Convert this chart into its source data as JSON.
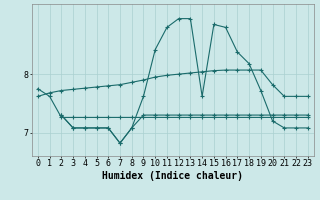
{
  "bg_color": "#cce8e8",
  "line_color": "#1a6b6b",
  "grid_color": "#aad0d0",
  "xlabel": "Humidex (Indice chaleur)",
  "xlabel_fontsize": 7,
  "tick_fontsize": 6,
  "ylabel_ticks": [
    7,
    8
  ],
  "xlim": [
    -0.5,
    23.5
  ],
  "ylim": [
    6.6,
    9.2
  ],
  "figsize": [
    3.2,
    2.0
  ],
  "dpi": 100,
  "series1_x": [
    0,
    1,
    2,
    3,
    4,
    5,
    6,
    7,
    8,
    9,
    10,
    11,
    12,
    13,
    14,
    15,
    16,
    17,
    18,
    19,
    20,
    21,
    22,
    23
  ],
  "series1_y": [
    7.75,
    7.62,
    7.26,
    7.26,
    7.26,
    7.26,
    7.26,
    7.26,
    7.26,
    7.26,
    7.26,
    7.26,
    7.26,
    7.26,
    7.26,
    7.26,
    7.26,
    7.26,
    7.26,
    7.26,
    7.26,
    7.26,
    7.26,
    7.26
  ],
  "series2_x": [
    0,
    1,
    2,
    3,
    4,
    5,
    6,
    7,
    8,
    9,
    10,
    11,
    12,
    13,
    14,
    15,
    16,
    17,
    18,
    19,
    20,
    21,
    22,
    23
  ],
  "series2_y": [
    7.62,
    7.68,
    7.72,
    7.74,
    7.76,
    7.78,
    7.8,
    7.82,
    7.86,
    7.9,
    7.95,
    7.98,
    8.0,
    8.02,
    8.04,
    8.06,
    8.07,
    8.07,
    8.07,
    8.07,
    7.82,
    7.62,
    7.62,
    7.62
  ],
  "series3_x": [
    2,
    3,
    4,
    5,
    6,
    7,
    8,
    9,
    10,
    11,
    12,
    13,
    14,
    15,
    16,
    17,
    18,
    19,
    20,
    21,
    22,
    23
  ],
  "series3_y": [
    7.3,
    7.08,
    7.08,
    7.08,
    7.08,
    6.82,
    7.08,
    7.3,
    7.3,
    7.3,
    7.3,
    7.3,
    7.3,
    7.3,
    7.3,
    7.3,
    7.3,
    7.3,
    7.3,
    7.3,
    7.3,
    7.3
  ],
  "series4_x": [
    2,
    3,
    4,
    5,
    6,
    7,
    8,
    9,
    10,
    11,
    12,
    13,
    14,
    15,
    16,
    17,
    18,
    19,
    20,
    21,
    22,
    23
  ],
  "series4_y": [
    7.3,
    7.08,
    7.08,
    7.08,
    7.08,
    6.82,
    7.08,
    7.62,
    8.42,
    8.8,
    8.95,
    8.95,
    7.62,
    8.85,
    8.8,
    8.38,
    8.18,
    7.72,
    7.2,
    7.08,
    7.08,
    7.08
  ]
}
